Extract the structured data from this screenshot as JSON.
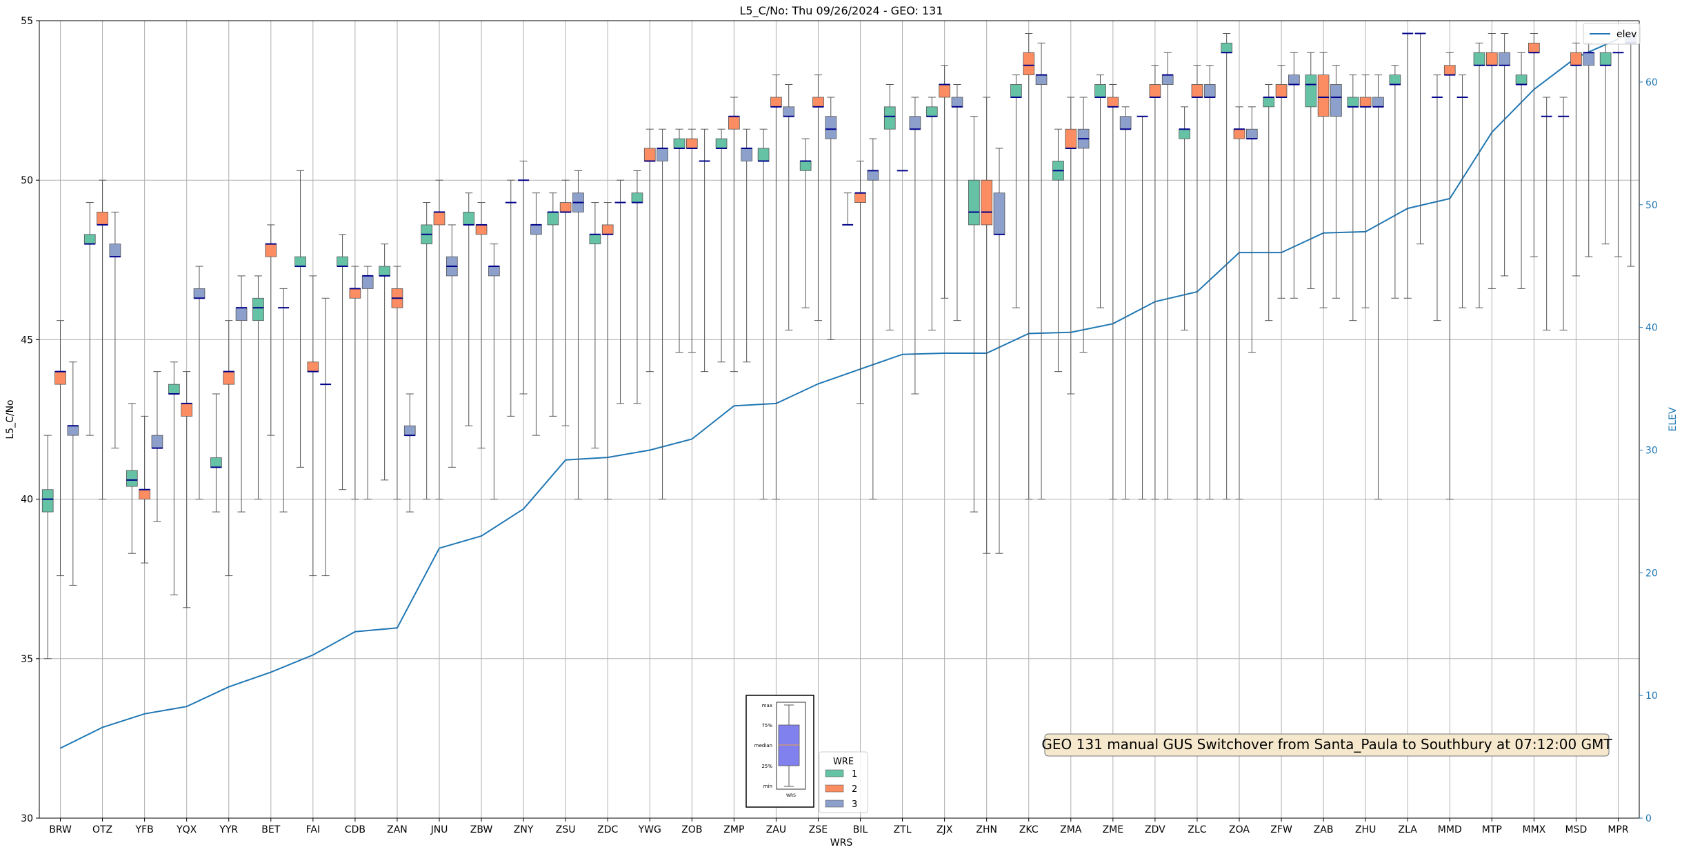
{
  "chart_data": {
    "type": "box",
    "title": "L5_C/No: Thu 09/26/2024 - GEO: 131",
    "xlabel": "WRS",
    "ylabel": "L5_C/No",
    "y2label": "ELEV",
    "ylim": [
      30,
      55
    ],
    "y2lim": [
      0,
      65
    ],
    "yticks": [
      30,
      35,
      40,
      45,
      50,
      55
    ],
    "y2ticks": [
      0,
      10,
      20,
      30,
      40,
      50,
      60
    ],
    "grid": true,
    "categories": [
      "BRW",
      "OTZ",
      "YFB",
      "YQX",
      "YYR",
      "BET",
      "FAI",
      "CDB",
      "ZAN",
      "JNU",
      "ZBW",
      "ZNY",
      "ZSU",
      "ZDC",
      "YWG",
      "ZOB",
      "ZMP",
      "ZAU",
      "ZSE",
      "BIL",
      "ZTL",
      "ZJX",
      "ZHN",
      "ZKC",
      "ZMA",
      "ZME",
      "ZDV",
      "ZLC",
      "ZOA",
      "ZFW",
      "ZAB",
      "ZHU",
      "ZLA",
      "MMD",
      "MTP",
      "MMX",
      "MSD",
      "MPR"
    ],
    "series": [
      {
        "name": "1",
        "color": "#66c2a5",
        "boxes": [
          [
            35.0,
            39.6,
            40.0,
            40.3,
            42.0
          ],
          [
            42.0,
            48.0,
            48.0,
            48.3,
            49.3
          ],
          [
            38.3,
            40.4,
            40.6,
            40.9,
            43.0
          ],
          [
            37.0,
            43.3,
            43.3,
            43.6,
            44.3
          ],
          [
            39.6,
            41.0,
            41.0,
            41.3,
            43.3
          ],
          [
            40.0,
            45.6,
            46.0,
            46.3,
            47.0
          ],
          [
            41.0,
            47.3,
            47.3,
            47.6,
            50.3
          ],
          [
            40.3,
            47.3,
            47.3,
            47.6,
            48.3
          ],
          [
            40.6,
            47.0,
            47.0,
            47.3,
            48.0
          ],
          [
            40.0,
            48.0,
            48.3,
            48.6,
            49.3
          ],
          [
            42.3,
            48.6,
            48.6,
            49.0,
            49.6
          ],
          [
            42.6,
            49.3,
            49.3,
            49.3,
            50.0
          ],
          [
            42.6,
            48.6,
            49.0,
            49.0,
            49.6
          ],
          [
            41.6,
            48.0,
            48.3,
            48.3,
            49.3
          ],
          [
            43.0,
            49.3,
            49.3,
            49.6,
            50.3
          ],
          [
            44.6,
            51.0,
            51.0,
            51.3,
            51.6
          ],
          [
            44.3,
            51.0,
            51.0,
            51.3,
            51.6
          ],
          [
            40.0,
            50.6,
            50.6,
            51.0,
            51.6
          ],
          [
            46.0,
            50.3,
            50.6,
            50.6,
            51.3
          ],
          [
            48.6,
            48.6,
            48.6,
            48.6,
            49.6
          ],
          [
            45.3,
            51.6,
            52.0,
            52.3,
            53.0
          ],
          [
            45.3,
            52.0,
            52.0,
            52.3,
            52.6
          ],
          [
            39.6,
            48.6,
            49.0,
            50.0,
            52.0
          ],
          [
            46.0,
            52.6,
            52.6,
            53.0,
            53.3
          ],
          [
            44.0,
            50.0,
            50.3,
            50.6,
            51.6
          ],
          [
            46.0,
            52.6,
            52.6,
            53.0,
            53.3
          ],
          [
            40.0,
            52.0,
            52.0,
            52.0,
            52.0
          ],
          [
            45.3,
            51.3,
            51.6,
            51.6,
            52.3
          ],
          [
            40.0,
            54.0,
            54.0,
            54.3,
            54.6
          ],
          [
            45.6,
            52.3,
            52.6,
            52.6,
            53.0
          ],
          [
            46.6,
            52.3,
            53.0,
            53.3,
            54.0
          ],
          [
            45.6,
            52.3,
            52.3,
            52.6,
            53.3
          ],
          [
            46.3,
            53.0,
            53.0,
            53.3,
            53.6
          ],
          [
            45.6,
            52.6,
            52.6,
            52.6,
            53.3
          ],
          [
            46.0,
            53.6,
            53.6,
            54.0,
            54.3
          ],
          [
            46.6,
            53.0,
            53.0,
            53.3,
            54.0
          ],
          [
            45.3,
            52.0,
            52.0,
            52.0,
            52.6
          ],
          [
            48.0,
            53.6,
            53.6,
            54.0,
            54.3
          ]
        ]
      },
      {
        "name": "2",
        "color": "#fc8d62",
        "boxes": [
          [
            37.6,
            43.6,
            44.0,
            44.0,
            45.6
          ],
          [
            40.0,
            48.6,
            48.6,
            49.0,
            50.0
          ],
          [
            38.0,
            40.0,
            40.3,
            40.3,
            42.6
          ],
          [
            36.6,
            42.6,
            43.0,
            43.0,
            44.0
          ],
          [
            37.6,
            43.6,
            44.0,
            44.0,
            45.6
          ],
          [
            42.0,
            47.6,
            48.0,
            48.0,
            48.6
          ],
          [
            37.6,
            44.0,
            44.0,
            44.3,
            47.0
          ],
          [
            40.0,
            46.3,
            46.6,
            46.6,
            47.3
          ],
          [
            40.0,
            46.0,
            46.3,
            46.6,
            47.3
          ],
          [
            40.0,
            48.6,
            49.0,
            49.0,
            50.0
          ],
          [
            41.6,
            48.3,
            48.6,
            48.6,
            49.3
          ],
          [
            43.3,
            50.0,
            50.0,
            50.0,
            50.6
          ],
          [
            42.3,
            49.0,
            49.0,
            49.3,
            50.0
          ],
          [
            40.0,
            48.3,
            48.3,
            48.6,
            49.3
          ],
          [
            44.0,
            50.6,
            50.6,
            51.0,
            51.6
          ],
          [
            44.6,
            51.0,
            51.0,
            51.3,
            51.6
          ],
          [
            44.0,
            51.6,
            52.0,
            52.0,
            52.6
          ],
          [
            40.0,
            52.3,
            52.3,
            52.6,
            53.3
          ],
          [
            45.6,
            52.3,
            52.3,
            52.6,
            53.3
          ],
          [
            43.0,
            49.3,
            49.6,
            49.6,
            50.6
          ],
          [
            50.3,
            50.3,
            50.3,
            50.3,
            50.3
          ],
          [
            46.3,
            52.6,
            53.0,
            53.0,
            53.6
          ],
          [
            38.3,
            48.6,
            49.0,
            50.0,
            52.6
          ],
          [
            40.0,
            53.3,
            53.6,
            54.0,
            54.6
          ],
          [
            43.3,
            51.0,
            51.0,
            51.6,
            52.6
          ],
          [
            40.0,
            52.3,
            52.3,
            52.6,
            53.0
          ],
          [
            40.0,
            52.6,
            52.6,
            53.0,
            53.6
          ],
          [
            40.0,
            52.6,
            52.6,
            53.0,
            53.6
          ],
          [
            40.0,
            51.3,
            51.6,
            51.6,
            52.3
          ],
          [
            46.3,
            52.6,
            52.6,
            53.0,
            53.6
          ],
          [
            46.0,
            52.0,
            52.6,
            53.3,
            54.0
          ],
          [
            46.0,
            52.3,
            52.3,
            52.6,
            53.3
          ],
          [
            46.3,
            54.6,
            54.6,
            54.6,
            54.6
          ],
          [
            40.0,
            53.3,
            53.3,
            53.6,
            54.0
          ],
          [
            46.6,
            53.6,
            53.6,
            54.0,
            54.6
          ],
          [
            47.6,
            54.0,
            54.0,
            54.3,
            54.6
          ],
          [
            47.0,
            53.6,
            53.6,
            54.0,
            54.3
          ],
          [
            47.6,
            54.0,
            54.0,
            54.0,
            54.0
          ]
        ]
      },
      {
        "name": "3",
        "color": "#8da0cb",
        "boxes": [
          [
            37.3,
            42.0,
            42.3,
            42.3,
            44.3
          ],
          [
            41.6,
            47.6,
            47.6,
            48.0,
            49.0
          ],
          [
            39.3,
            41.6,
            41.6,
            42.0,
            44.0
          ],
          [
            40.0,
            46.3,
            46.3,
            46.6,
            47.3
          ],
          [
            39.6,
            45.6,
            46.0,
            46.0,
            47.0
          ],
          [
            39.6,
            46.0,
            46.0,
            46.0,
            46.6
          ],
          [
            37.6,
            43.6,
            43.6,
            43.6,
            46.3
          ],
          [
            40.0,
            46.6,
            47.0,
            47.0,
            47.3
          ],
          [
            39.6,
            42.0,
            42.0,
            42.3,
            43.3
          ],
          [
            41.0,
            47.0,
            47.3,
            47.6,
            48.6
          ],
          [
            40.0,
            47.0,
            47.3,
            47.3,
            48.0
          ],
          [
            42.0,
            48.3,
            48.6,
            48.6,
            49.6
          ],
          [
            40.0,
            49.0,
            49.3,
            49.6,
            50.3
          ],
          [
            43.0,
            49.3,
            49.3,
            49.3,
            50.0
          ],
          [
            40.0,
            50.6,
            51.0,
            51.0,
            51.6
          ],
          [
            44.0,
            50.6,
            50.6,
            50.6,
            51.6
          ],
          [
            44.3,
            50.6,
            51.0,
            51.0,
            51.6
          ],
          [
            45.3,
            52.0,
            52.0,
            52.3,
            53.0
          ],
          [
            45.0,
            51.3,
            51.6,
            52.0,
            52.6
          ],
          [
            40.0,
            50.0,
            50.3,
            50.3,
            51.3
          ],
          [
            43.3,
            51.6,
            51.6,
            52.0,
            52.6
          ],
          [
            45.6,
            52.3,
            52.3,
            52.6,
            53.0
          ],
          [
            38.3,
            48.3,
            48.3,
            49.6,
            51.0
          ],
          [
            40.0,
            53.0,
            53.3,
            53.3,
            54.3
          ],
          [
            44.6,
            51.0,
            51.3,
            51.6,
            52.6
          ],
          [
            40.0,
            51.6,
            51.6,
            52.0,
            52.3
          ],
          [
            40.0,
            53.0,
            53.3,
            53.3,
            54.0
          ],
          [
            40.0,
            52.6,
            52.6,
            53.0,
            53.6
          ],
          [
            44.6,
            51.3,
            51.3,
            51.6,
            52.3
          ],
          [
            46.3,
            53.0,
            53.0,
            53.3,
            54.0
          ],
          [
            46.3,
            52.0,
            52.6,
            53.0,
            53.6
          ],
          [
            40.0,
            52.3,
            52.3,
            52.6,
            53.3
          ],
          [
            48.0,
            54.6,
            54.6,
            54.6,
            54.6
          ],
          [
            46.0,
            52.6,
            52.6,
            52.6,
            53.3
          ],
          [
            47.0,
            53.6,
            53.6,
            54.0,
            54.6
          ],
          [
            45.3,
            52.0,
            52.0,
            52.0,
            52.6
          ],
          [
            47.6,
            53.6,
            54.0,
            54.0,
            54.3
          ],
          [
            47.3,
            54.3,
            54.3,
            54.6,
            54.6
          ]
        ]
      }
    ],
    "elev": {
      "name": "elev",
      "color": "#1f77b4",
      "values": [
        5.7,
        7.4,
        8.5,
        9.1,
        10.7,
        11.9,
        13.3,
        15.2,
        15.5,
        22.0,
        23.0,
        25.2,
        29.2,
        29.4,
        30.0,
        30.9,
        33.6,
        33.8,
        35.4,
        36.6,
        37.8,
        37.9,
        37.9,
        39.5,
        39.6,
        40.3,
        42.1,
        42.9,
        46.1,
        46.1,
        47.7,
        47.8,
        49.7,
        50.5,
        55.9,
        59.4,
        62.0,
        63.5
      ]
    },
    "legend": {
      "title": "WRE",
      "entries": [
        "1",
        "2",
        "3"
      ],
      "position": "bottom-center"
    },
    "elev_legend": {
      "label": "elev",
      "position": "top-right"
    },
    "annotation": "GEO 131 manual GUS Switchover from Santa_Paula to Southbury at 07:12:00 GMT",
    "key_box": {
      "labels": [
        "max",
        "75%",
        "median",
        "25%",
        "min"
      ],
      "xlabel": "WRS"
    }
  }
}
